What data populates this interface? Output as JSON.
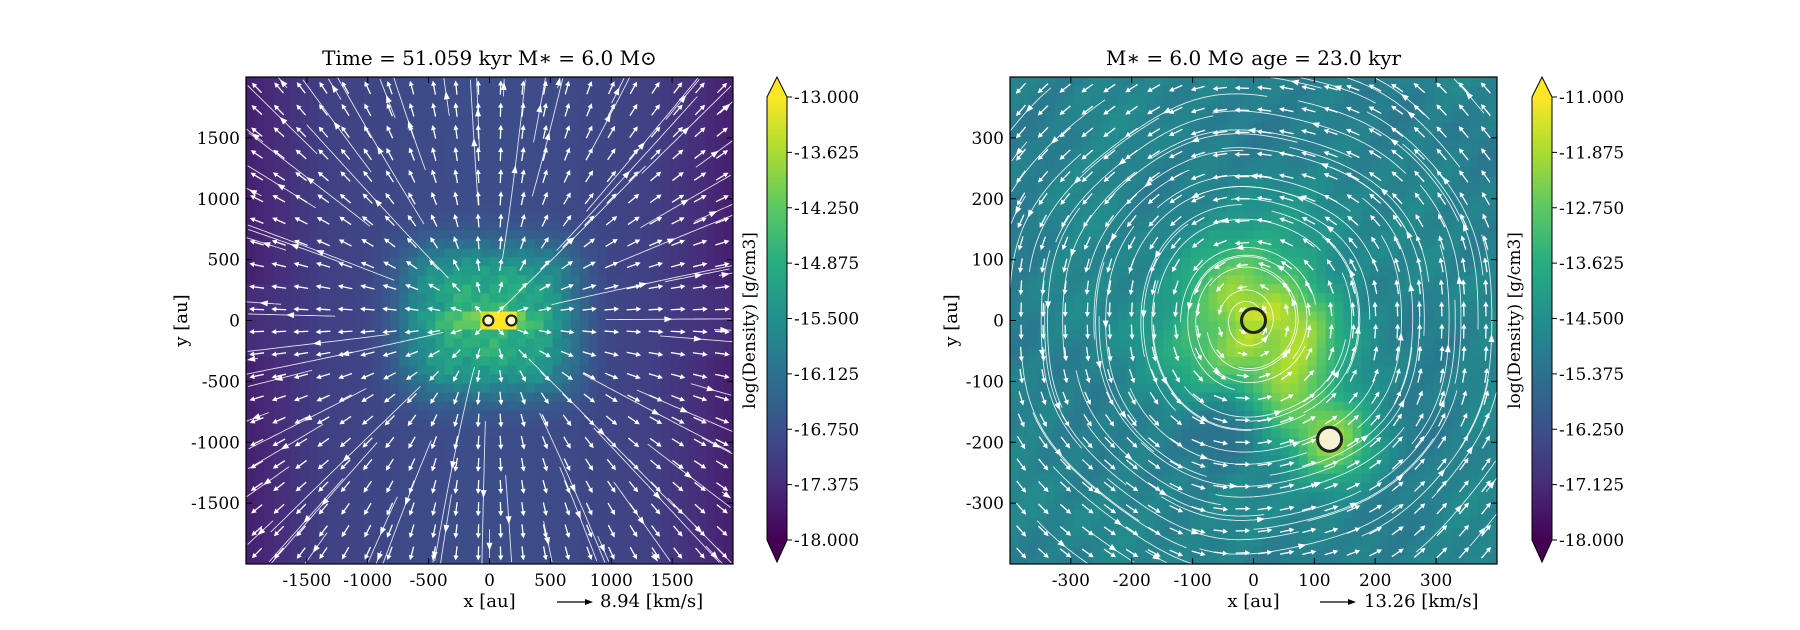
{
  "colorscale": [
    "#440154",
    "#472c7a",
    "#3b518b",
    "#2c718e",
    "#21908d",
    "#27ad81",
    "#5cc863",
    "#aadc32",
    "#fde725"
  ],
  "chart_data": [
    {
      "type": "heatmap",
      "title": "Time = 51.059 kyr    M$_*$ = 6.0 M$_\\odot$",
      "title_text": "Time = 51.059 kyr    M∗ = 6.0 M⊙",
      "xlabel": "x [au]",
      "ylabel": "y [au]",
      "xlim": [
        -2000,
        2000
      ],
      "ylim": [
        -2000,
        2000
      ],
      "xticks": [
        -1500,
        -1000,
        -500,
        0,
        500,
        1000,
        1500
      ],
      "yticks": [
        1500,
        1000,
        500,
        0,
        -500,
        -1000,
        -1500
      ],
      "xtick_labels": [
        "-1500",
        "-1000",
        "-500",
        "0",
        "500",
        "1000",
        "1500"
      ],
      "ytick_labels": [
        "1500",
        "1000",
        "500",
        "0",
        "-500",
        "-1000",
        "-1500"
      ],
      "colorbar": {
        "label": "log(Density) [g/cm3]",
        "range": [
          -18.0,
          -13.0
        ],
        "ticks": [
          "-13.000",
          "-13.625",
          "-14.250",
          "-14.875",
          "-15.500",
          "-16.125",
          "-16.750",
          "-17.375",
          "-18.000"
        ]
      },
      "quiver_key": {
        "label": "8.94 [km/s]"
      },
      "stars": [
        {
          "x": -10,
          "y": 0
        },
        {
          "x": 180,
          "y": 0
        }
      ],
      "field": "bipolar_outflow"
    },
    {
      "type": "heatmap",
      "title": "M$_*$ = 6.0 M$_\\odot$        age = 23.0 kyr",
      "title_text": "M∗ = 6.0 M⊙          age = 23.0 kyr",
      "xlabel": "x [au]",
      "ylabel": "y [au]",
      "xlim": [
        -400,
        400
      ],
      "ylim": [
        -400,
        400
      ],
      "xticks": [
        -300,
        -200,
        -100,
        0,
        100,
        200,
        300
      ],
      "yticks": [
        300,
        200,
        100,
        0,
        -100,
        -200,
        -300
      ],
      "xtick_labels": [
        "-300",
        "-200",
        "-100",
        "0",
        "100",
        "200",
        "300"
      ],
      "ytick_labels": [
        "300",
        "200",
        "100",
        "0",
        "-100",
        "-200",
        "-300"
      ],
      "colorbar": {
        "label": "log(Density) [g/cm3]",
        "range": [
          -18.0,
          -11.0
        ],
        "ticks": [
          "-11.000",
          "-11.875",
          "-12.750",
          "-13.625",
          "-14.500",
          "-15.375",
          "-16.250",
          "-17.125",
          "-18.000"
        ]
      },
      "quiver_key": {
        "label": "13.26 [km/s]"
      },
      "stars": [
        {
          "x": 0,
          "y": 0
        },
        {
          "x": 125,
          "y": -195
        }
      ],
      "field": "rotating_binary"
    }
  ]
}
